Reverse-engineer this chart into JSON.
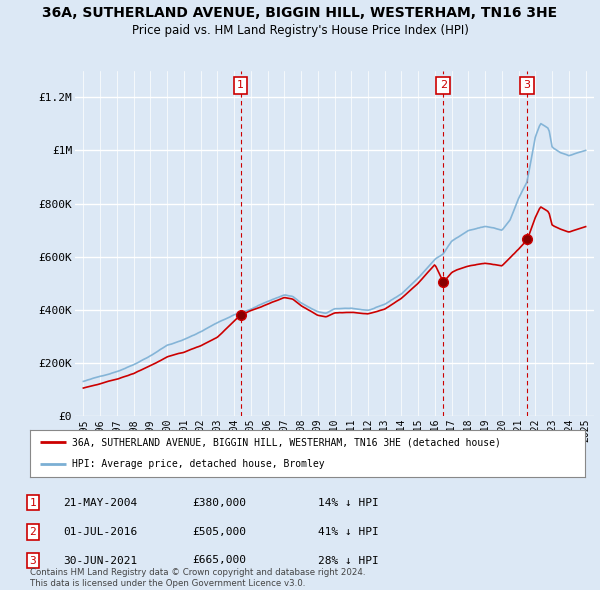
{
  "title": "36A, SUTHERLAND AVENUE, BIGGIN HILL, WESTERHAM, TN16 3HE",
  "subtitle": "Price paid vs. HM Land Registry's House Price Index (HPI)",
  "ylabel_ticks": [
    "£0",
    "£200K",
    "£400K",
    "£600K",
    "£800K",
    "£1M",
    "£1.2M"
  ],
  "ytick_vals": [
    0,
    200000,
    400000,
    600000,
    800000,
    1000000,
    1200000
  ],
  "ylim": [
    0,
    1300000
  ],
  "xlim_start": 1994.5,
  "xlim_end": 2025.5,
  "background_color": "#dce8f5",
  "plot_bg_color": "#dce8f5",
  "red_line_color": "#cc0000",
  "blue_line_color": "#7bafd4",
  "grid_color": "#ffffff",
  "sale_markers": [
    {
      "year": 2004.39,
      "price": 380000,
      "label": "1"
    },
    {
      "year": 2016.5,
      "price": 505000,
      "label": "2"
    },
    {
      "year": 2021.5,
      "price": 665000,
      "label": "3"
    }
  ],
  "legend_label_red": "36A, SUTHERLAND AVENUE, BIGGIN HILL, WESTERHAM, TN16 3HE (detached house)",
  "legend_label_blue": "HPI: Average price, detached house, Bromley",
  "table_rows": [
    {
      "num": "1",
      "date": "21-MAY-2004",
      "price": "£380,000",
      "hpi": "14% ↓ HPI"
    },
    {
      "num": "2",
      "date": "01-JUL-2016",
      "price": "£505,000",
      "hpi": "41% ↓ HPI"
    },
    {
      "num": "3",
      "date": "30-JUN-2021",
      "price": "£665,000",
      "hpi": "28% ↓ HPI"
    }
  ],
  "footnote": "Contains HM Land Registry data © Crown copyright and database right 2024.\nThis data is licensed under the Open Government Licence v3.0.",
  "xtick_years": [
    1995,
    1996,
    1997,
    1998,
    1999,
    2000,
    2001,
    2002,
    2003,
    2004,
    2005,
    2006,
    2007,
    2008,
    2009,
    2010,
    2011,
    2012,
    2013,
    2014,
    2015,
    2016,
    2017,
    2018,
    2019,
    2020,
    2021,
    2022,
    2023,
    2024,
    2025
  ]
}
